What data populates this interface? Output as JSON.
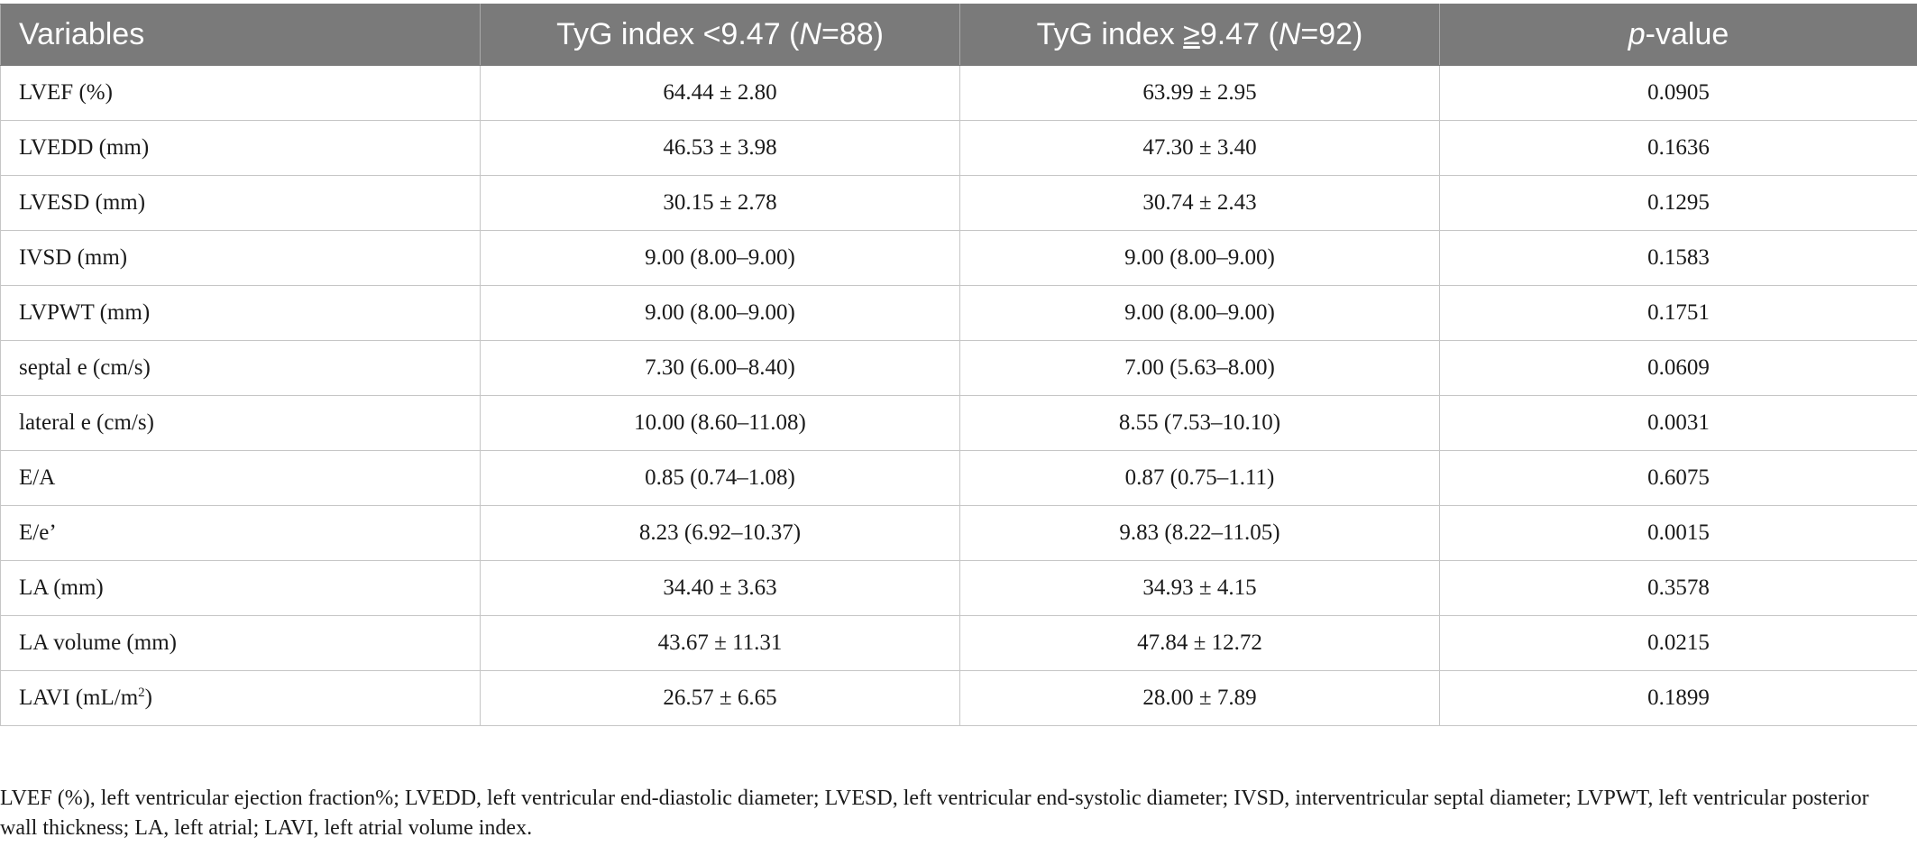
{
  "table": {
    "headers": {
      "variables": "Variables",
      "group_low_prefix": "TyG index <9.47 (",
      "group_low_n_symbol": "N",
      "group_low_n_value": "=88)",
      "group_high_prefix": "TyG index ",
      "group_high_symbol": "≥",
      "group_high_value": "9.47 (",
      "group_high_n_symbol": "N",
      "group_high_n_value": "=92)",
      "pvalue_p": "p",
      "pvalue_suffix": "-value"
    },
    "rows": [
      {
        "variable": "LVEF (%)",
        "low": "64.44 ± 2.80",
        "high": "63.99 ± 2.95",
        "p": "0.0905"
      },
      {
        "variable": "LVEDD (mm)",
        "low": "46.53 ± 3.98",
        "high": "47.30 ± 3.40",
        "p": "0.1636"
      },
      {
        "variable": "LVESD (mm)",
        "low": "30.15 ± 2.78",
        "high": "30.74 ± 2.43",
        "p": "0.1295"
      },
      {
        "variable": "IVSD (mm)",
        "low": "9.00 (8.00–9.00)",
        "high": "9.00 (8.00–9.00)",
        "p": "0.1583"
      },
      {
        "variable": "LVPWT (mm)",
        "low": "9.00 (8.00–9.00)",
        "high": "9.00 (8.00–9.00)",
        "p": "0.1751"
      },
      {
        "variable": "septal e (cm/s)",
        "low": "7.30 (6.00–8.40)",
        "high": "7.00 (5.63–8.00)",
        "p": "0.0609"
      },
      {
        "variable": "lateral e (cm/s)",
        "low": "10.00 (8.60–11.08)",
        "high": "8.55 (7.53–10.10)",
        "p": "0.0031"
      },
      {
        "variable": "E/A",
        "low": "0.85 (0.74–1.08)",
        "high": "0.87 (0.75–1.11)",
        "p": "0.6075"
      },
      {
        "variable": "E/e’",
        "low": "8.23 (6.92–10.37)",
        "high": "9.83 (8.22–11.05)",
        "p": "0.0015"
      },
      {
        "variable": "LA (mm)",
        "low": "34.40 ± 3.63",
        "high": "34.93 ± 4.15",
        "p": "0.3578"
      },
      {
        "variable": "LA volume (mm)",
        "low": "43.67 ± 11.31",
        "high": "47.84 ± 12.72",
        "p": "0.0215"
      },
      {
        "variable": "LAVI (mL/m",
        "variable_sup": "2",
        "variable_tail": ")",
        "low": "26.57 ± 6.65",
        "high": "28.00 ± 7.89",
        "p": "0.1899"
      }
    ]
  },
  "footnote": "LVEF (%), left ventricular ejection fraction%; LVEDD, left ventricular end-diastolic diameter; LVESD, left ventricular end-systolic diameter; IVSD, interventricular septal diameter; LVPWT, left ventricular posterior wall thickness; LA, left atrial; LAVI, left atrial volume index.",
  "colors": {
    "header_bg": "#7a7a7a",
    "header_text": "#ffffff",
    "grid": "#c6c6c6",
    "body_text": "#1a1a1a"
  }
}
